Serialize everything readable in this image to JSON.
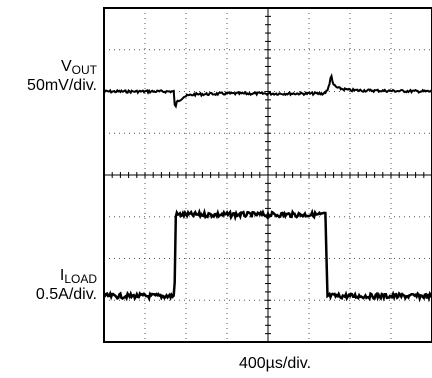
{
  "chart_data": {
    "type": "line",
    "graticule": {
      "divisions_x": 8,
      "divisions_y": 8,
      "grid": true,
      "style": "dotted"
    },
    "xlabel": "400µs/div.",
    "xlim_div": [
      0,
      8
    ],
    "channels": [
      {
        "id": "vout",
        "label_main": "V",
        "label_sub": "OUT",
        "scale": "50mV/div.",
        "baseline_div": 6.0,
        "points_div": [
          [
            0,
            6.0
          ],
          [
            1.7,
            6.0
          ],
          [
            1.73,
            5.6
          ],
          [
            1.78,
            5.75
          ],
          [
            1.95,
            5.88
          ],
          [
            2.2,
            5.93
          ],
          [
            3.0,
            5.95
          ],
          [
            5.35,
            5.95
          ],
          [
            5.45,
            6.02
          ],
          [
            5.5,
            6.2
          ],
          [
            5.54,
            6.4
          ],
          [
            5.58,
            6.18
          ],
          [
            5.7,
            6.08
          ],
          [
            6.0,
            6.03
          ],
          [
            8,
            6.0
          ]
        ]
      },
      {
        "id": "iload",
        "label_main": "I",
        "label_sub": "LOAD",
        "scale": "0.5A/div.",
        "low_div": 1.1,
        "high_div": 3.05,
        "rise_div": 1.72,
        "fall_div": 5.4
      }
    ]
  }
}
